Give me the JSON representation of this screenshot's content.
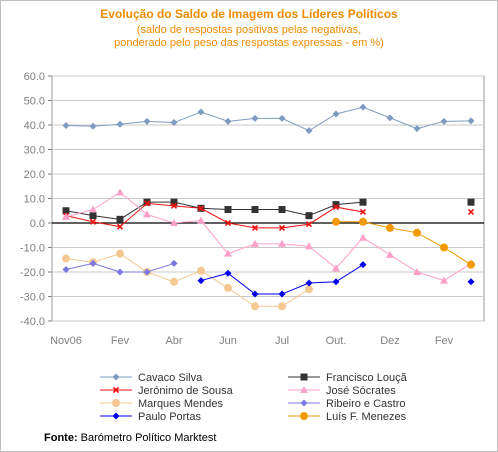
{
  "chart_data": {
    "type": "line",
    "title": "Evolução do Saldo  de Imagem dos Líderes Políticos",
    "subtitle_lines": [
      "(saldo de respostas positivas pelas negativas,",
      "ponderado pelo peso das respostas expressas - em %)"
    ],
    "ylim": [
      -40,
      60
    ],
    "yticks": [
      "60.0",
      "50.0",
      "40.0",
      "30.0",
      "20.0",
      "10.0",
      "0.0",
      "-10.0",
      "-20.0",
      "-30.0",
      "-40.0"
    ],
    "ytick_values": [
      60,
      50,
      40,
      30,
      20,
      10,
      0,
      -10,
      -20,
      -30,
      -40
    ],
    "x_count": 17,
    "x_labels": [
      {
        "index": 0,
        "label": "Nov06"
      },
      {
        "index": 2,
        "label": "Fev"
      },
      {
        "index": 4,
        "label": "Abr"
      },
      {
        "index": 6,
        "label": "Jun"
      },
      {
        "index": 8,
        "label": "Jul"
      },
      {
        "index": 10,
        "label": "Out."
      },
      {
        "index": 12,
        "label": "Dez"
      },
      {
        "index": 14,
        "label": "Fev"
      }
    ],
    "series": [
      {
        "name": "Cavaco Silva",
        "color": "#7f9cc0",
        "marker": "diamond",
        "values": [
          39.8,
          39.5,
          40.3,
          41.5,
          41.0,
          45.3,
          41.5,
          42.7,
          42.7,
          37.7,
          44.5,
          47.3,
          42.9,
          38.5,
          41.5,
          41.7,
          null
        ]
      },
      {
        "name": "Francisco Louçã",
        "color": "#333333",
        "marker": "square",
        "values": [
          5.0,
          3.0,
          1.5,
          8.5,
          8.5,
          6.0,
          5.5,
          5.5,
          5.5,
          3.0,
          7.5,
          8.5,
          null,
          null,
          null,
          8.5,
          null
        ]
      },
      {
        "name": "Jerónimo de Sousa",
        "color": "#ee1111",
        "marker": "x",
        "values": [
          3.0,
          0.5,
          -1.5,
          8.0,
          7.0,
          6.0,
          0.0,
          -2.0,
          -2.0,
          -0.5,
          6.5,
          4.5,
          null,
          null,
          null,
          4.5,
          null
        ]
      },
      {
        "name": "José Sócrates",
        "color": "#ff9fcb",
        "marker": "triangle",
        "values": [
          2.5,
          5.5,
          12.5,
          3.5,
          0.0,
          1.0,
          -12.5,
          -8.5,
          -8.5,
          -9.5,
          -18.5,
          -6.0,
          -13.0,
          -20.0,
          -23.5,
          -16.5,
          null
        ]
      },
      {
        "name": "Marques Mendes",
        "color": "#f6c891",
        "marker": "circle",
        "values": [
          -14.5,
          -16.0,
          -12.5,
          -20.0,
          -24.0,
          -19.5,
          -26.5,
          -34.0,
          -34.0,
          -27.0,
          null,
          null,
          null,
          null,
          null,
          null,
          null
        ]
      },
      {
        "name": "Ribeiro e Castro",
        "color": "#7b77e0",
        "marker": "diamond",
        "values": [
          -19.0,
          -16.5,
          -20.0,
          -20.0,
          -16.5,
          null,
          null,
          null,
          null,
          null,
          null,
          null,
          null,
          null,
          null,
          null,
          null
        ]
      },
      {
        "name": "Paulo Portas",
        "color": "#0000ee",
        "marker": "diamond",
        "values": [
          null,
          null,
          null,
          null,
          null,
          -23.5,
          -20.5,
          -29.0,
          -29.0,
          -24.5,
          -24.0,
          -17.0,
          null,
          null,
          null,
          -24.0,
          null
        ]
      },
      {
        "name": "Luís F. Menezes",
        "color": "#f29a00",
        "marker": "circle",
        "values": [
          null,
          null,
          null,
          null,
          null,
          null,
          null,
          null,
          null,
          null,
          0.5,
          0.5,
          -2.0,
          -4.0,
          -10.0,
          -17.0,
          null
        ]
      }
    ],
    "legend_placement": "bottom",
    "grid": true,
    "source_label": "Fonte:",
    "source_text": " Barómetro Político Marktest"
  }
}
